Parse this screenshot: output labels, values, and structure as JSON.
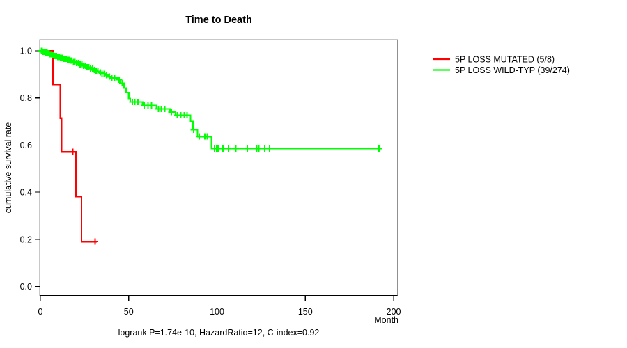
{
  "title": "Time to Death",
  "footer": "logrank P=1.74e-10, HazardRatio=12, C-index=0.92",
  "axes": {
    "x_label": "Month",
    "y_label": "cumulative survival rate",
    "x_ticks": [
      0,
      50,
      100,
      150,
      200
    ],
    "x_tick_labels": [
      "0",
      "50",
      "100",
      "150",
      "200"
    ],
    "y_ticks": [
      0.0,
      0.2,
      0.4,
      0.6,
      0.8,
      1.0
    ],
    "y_tick_labels": [
      "0.0",
      "0.2",
      "0.4",
      "0.6",
      "0.8",
      "1.0"
    ]
  },
  "legend": {
    "items": [
      {
        "label": "5P LOSS MUTATED (5/8)",
        "color": "#ff0000"
      },
      {
        "label": "5P LOSS WILD-TYP (39/274)",
        "color": "#00ff00"
      }
    ]
  },
  "chart_data": {
    "type": "line",
    "subtype": "kaplan-meier-step",
    "title": "Time to Death",
    "xlabel": "Month",
    "ylabel": "cumulative survival rate",
    "xlim": [
      0,
      202
    ],
    "ylim": [
      0,
      1.04
    ],
    "grid": false,
    "legend_position": "right-outside",
    "annotation": "logrank P=1.74e-10, HazardRatio=12, C-index=0.92",
    "series": [
      {
        "name": "5P LOSS MUTATED (5/8)",
        "color": "#ff0000",
        "events": "5/8",
        "steps": [
          [
            0,
            1.0
          ],
          [
            7.0,
            0.857
          ],
          [
            11.3,
            0.714
          ],
          [
            12.0,
            0.571
          ],
          [
            20.1,
            0.381
          ],
          [
            23.3,
            0.19
          ]
        ],
        "end_time": 32.0,
        "censor_times": [
          18.3,
          31.0
        ]
      },
      {
        "name": "5P LOSS WILD-TYP (39/274)",
        "color": "#00ff00",
        "events": "39/274",
        "steps": [
          [
            0,
            1.0
          ],
          [
            1.2,
            0.996
          ],
          [
            2.5,
            0.993
          ],
          [
            4,
            0.989
          ],
          [
            5.2,
            0.985
          ],
          [
            6.6,
            0.982
          ],
          [
            8,
            0.978
          ],
          [
            9.5,
            0.974
          ],
          [
            11,
            0.97
          ],
          [
            13,
            0.966
          ],
          [
            15,
            0.962
          ],
          [
            16.5,
            0.958
          ],
          [
            18,
            0.953
          ],
          [
            20,
            0.948
          ],
          [
            22,
            0.943
          ],
          [
            24,
            0.937
          ],
          [
            26,
            0.931
          ],
          [
            28,
            0.925
          ],
          [
            30,
            0.919
          ],
          [
            31.5,
            0.913
          ],
          [
            33,
            0.908
          ],
          [
            35,
            0.903
          ],
          [
            36.5,
            0.896
          ],
          [
            38,
            0.89
          ],
          [
            40,
            0.884
          ],
          [
            43.4,
            0.877
          ],
          [
            45.4,
            0.862
          ],
          [
            47.3,
            0.842
          ],
          [
            48.5,
            0.823
          ],
          [
            50,
            0.798
          ],
          [
            50.9,
            0.783
          ],
          [
            57.9,
            0.768
          ],
          [
            65.8,
            0.753
          ],
          [
            73.4,
            0.74
          ],
          [
            76.5,
            0.727
          ],
          [
            85,
            0.7
          ],
          [
            86.3,
            0.665
          ],
          [
            88.9,
            0.636
          ],
          [
            96.8,
            0.585
          ]
        ],
        "end_time": 192.5,
        "censor_times": [
          0.5,
          1,
          1.6,
          2.1,
          2.7,
          3.2,
          3.8,
          4.3,
          4.9,
          5.5,
          6.1,
          6.8,
          7.5,
          8.2,
          9,
          9.8,
          10.6,
          11.4,
          12.2,
          13,
          13.8,
          14.6,
          15.4,
          16.2,
          17,
          17.8,
          18.7,
          19.6,
          20.5,
          21.5,
          22.5,
          23.5,
          24.5,
          25.5,
          26.5,
          27.5,
          28.5,
          29.5,
          30.5,
          31.5,
          32.5,
          34,
          35,
          36,
          37.5,
          39,
          40.5,
          42,
          44.5,
          46.3,
          52,
          53.5,
          55.2,
          58.8,
          61,
          63,
          66.8,
          68.5,
          70.5,
          74.2,
          77.5,
          79.5,
          81.5,
          83,
          86.8,
          90,
          93,
          94.5,
          98.7,
          99.8,
          100.5,
          103.4,
          106.6,
          110.6,
          117.2,
          122.4,
          123.7,
          127.0,
          129.7,
          191.7
        ]
      }
    ]
  }
}
